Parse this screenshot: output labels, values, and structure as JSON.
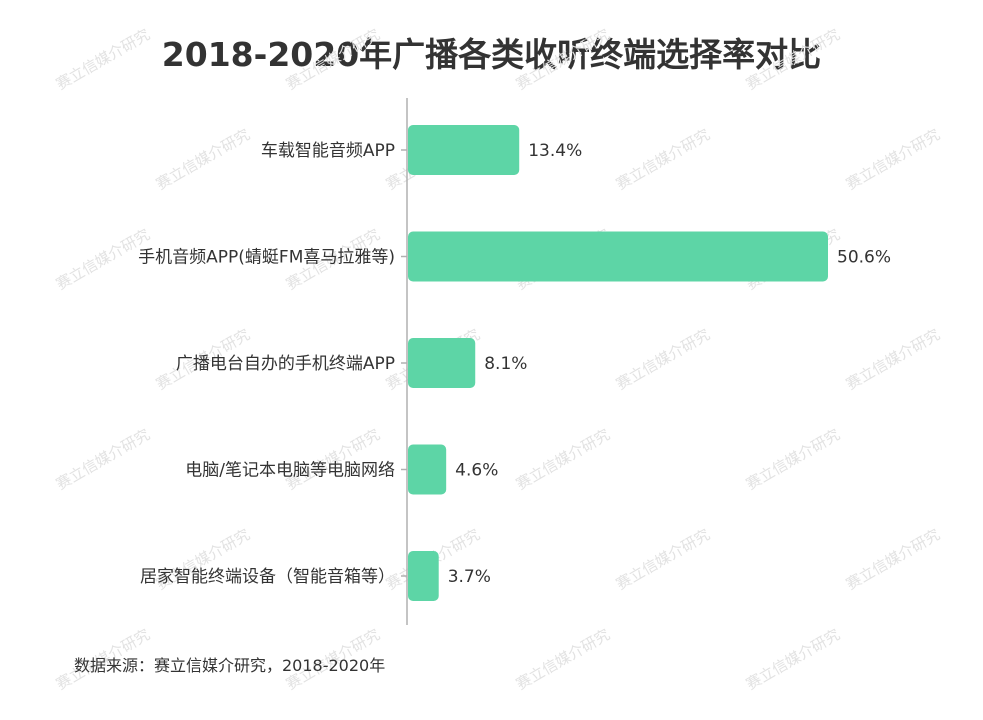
{
  "chart_data": {
    "type": "bar",
    "orientation": "horizontal",
    "title": "2018-2020年广播各类收听终端选择率对比",
    "categories": [
      "车载智能音频APP",
      "手机音频APP(蜻蜓FM喜马拉雅等)",
      "广播电台自办的手机终端APP",
      "电脑/笔记本电脑等电脑网络",
      "居家智能终端设备（智能音箱等）"
    ],
    "values": [
      13.4,
      50.6,
      8.1,
      4.6,
      3.7
    ],
    "value_labels": [
      "13.4%",
      "50.6%",
      "8.1%",
      "4.6%",
      "3.7%"
    ],
    "unit": "%",
    "xlim": [
      0,
      50.6
    ],
    "grid": false,
    "legend": "none",
    "bar_color": "#5dd5a6"
  },
  "source_text": "数据来源：赛立信媒介研究，2018-2020年",
  "watermark_text": "赛立信媒介研究"
}
